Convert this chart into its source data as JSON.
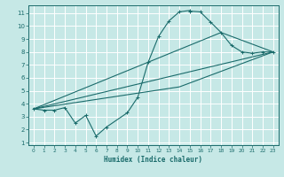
{
  "xlabel": "Humidex (Indice chaleur)",
  "background_color": "#c6e8e6",
  "grid_color": "#ffffff",
  "line_color": "#1a6b6b",
  "xlim": [
    -0.5,
    23.5
  ],
  "ylim": [
    0.8,
    11.6
  ],
  "xticks": [
    0,
    1,
    2,
    3,
    4,
    5,
    6,
    7,
    8,
    9,
    10,
    11,
    12,
    13,
    14,
    15,
    16,
    17,
    18,
    19,
    20,
    21,
    22,
    23
  ],
  "yticks": [
    1,
    2,
    3,
    4,
    5,
    6,
    7,
    8,
    9,
    10,
    11
  ],
  "series_main": [
    [
      0,
      3.6
    ],
    [
      1,
      3.5
    ],
    [
      2,
      3.5
    ],
    [
      3,
      3.7
    ],
    [
      4,
      2.5
    ],
    [
      5,
      3.1
    ],
    [
      6,
      1.5
    ],
    [
      7,
      2.2
    ],
    [
      9,
      3.3
    ],
    [
      10,
      4.5
    ],
    [
      11,
      7.2
    ],
    [
      12,
      9.2
    ],
    [
      13,
      10.4
    ],
    [
      14,
      11.1
    ],
    [
      15,
      11.2
    ],
    [
      15,
      11.15
    ],
    [
      16,
      11.1
    ],
    [
      17,
      10.3
    ],
    [
      18,
      9.5
    ],
    [
      19,
      8.5
    ],
    [
      20,
      8.0
    ],
    [
      21,
      7.9
    ],
    [
      22,
      8.0
    ],
    [
      23,
      8.0
    ]
  ],
  "series_line1": [
    [
      0,
      3.6
    ],
    [
      23,
      8.0
    ]
  ],
  "series_line2": [
    [
      0,
      3.6
    ],
    [
      18,
      9.5
    ],
    [
      23,
      8.0
    ]
  ],
  "series_line3": [
    [
      0,
      3.6
    ],
    [
      14,
      5.3
    ],
    [
      23,
      8.0
    ]
  ]
}
